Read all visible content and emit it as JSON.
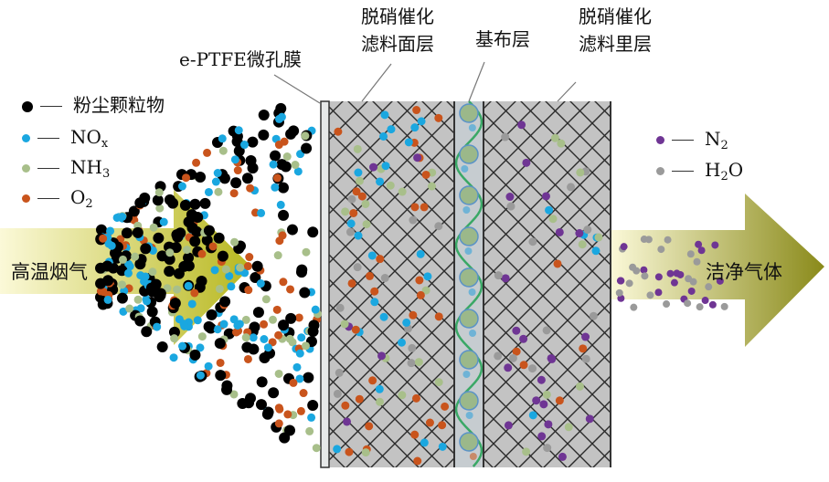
{
  "labels": {
    "membrane": "e-PTFE微孔膜",
    "face_layer": [
      "脱硝催化",
      "滤料面层"
    ],
    "base_layer": "基布层",
    "inner_layer": [
      "脱硝催化",
      "滤料里层"
    ],
    "inlet": "高温烟气",
    "outlet": "洁净气体"
  },
  "legend_left": [
    {
      "base": "粉尘颗粒物",
      "sub": "",
      "color": "#000000"
    },
    {
      "base": "NO",
      "sub": "x",
      "color": "#1aa7e0"
    },
    {
      "base": "NH",
      "sub": "3",
      "color": "#a8bf8a"
    },
    {
      "base": "O",
      "sub": "2",
      "color": "#c9541c"
    }
  ],
  "legend_right": [
    {
      "base": "N",
      "sub": "2",
      "color": "#6f3594"
    },
    {
      "base": "H",
      "sub": "2",
      "tail": "O",
      "color": "#9a9a9a"
    }
  ],
  "colors": {
    "layer": "#c3c3c3",
    "base_layer": "#c6ccd0",
    "arrow_start": "#fbf9d8",
    "arrow_end": "#8a8a1a",
    "fiber": "#3aa866",
    "hatch": "#2a2a2a"
  }
}
